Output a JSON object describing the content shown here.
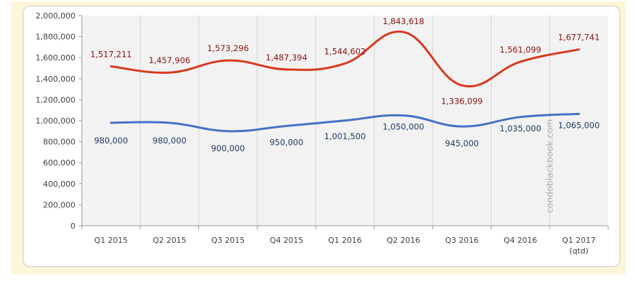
{
  "chart_data": {
    "type": "line",
    "categories": [
      "Q1 2015",
      "Q2 2015",
      "Q3 2015",
      "Q4 2015",
      "Q1 2016",
      "Q2 2016",
      "Q3 2016",
      "Q4 2016",
      "Q1 2017\n(qtd)"
    ],
    "series": [
      {
        "key": "red",
        "values": [
          1517211,
          1457906,
          1573296,
          1487394,
          1544602,
          1843618,
          1336099,
          1561099,
          1677741
        ],
        "labels": [
          "1,517,211",
          "1,457,906",
          "1,573,296",
          "1,487,394",
          "1,544,602",
          "1,843,618",
          "1,336,099",
          "1,561,099",
          "1,677,741"
        ],
        "color": "#d9381e",
        "label_color": "#8b1010"
      },
      {
        "key": "blue",
        "values": [
          980000,
          980000,
          900000,
          950000,
          1001500,
          1050000,
          945000,
          1035000,
          1065000
        ],
        "labels": [
          "980,000",
          "980,000",
          "900,000",
          "950,000",
          "1,001,500",
          "1,050,000",
          "945,000",
          "1,035,000",
          "1,065,000"
        ],
        "color": "#4472c4",
        "label_color": "#1f3864"
      }
    ],
    "y_ticks": [
      "2,000,000",
      "1,800,000",
      "1,600,000",
      "1,400,000",
      "1,200,000",
      "1,000,000",
      "800,000",
      "600,000",
      "400,000",
      "200,000",
      "0"
    ],
    "ylim": [
      0,
      2000000
    ],
    "grid": "vertical",
    "plot_background": "#f2f2f2",
    "watermark": "condoblackbook.com"
  }
}
